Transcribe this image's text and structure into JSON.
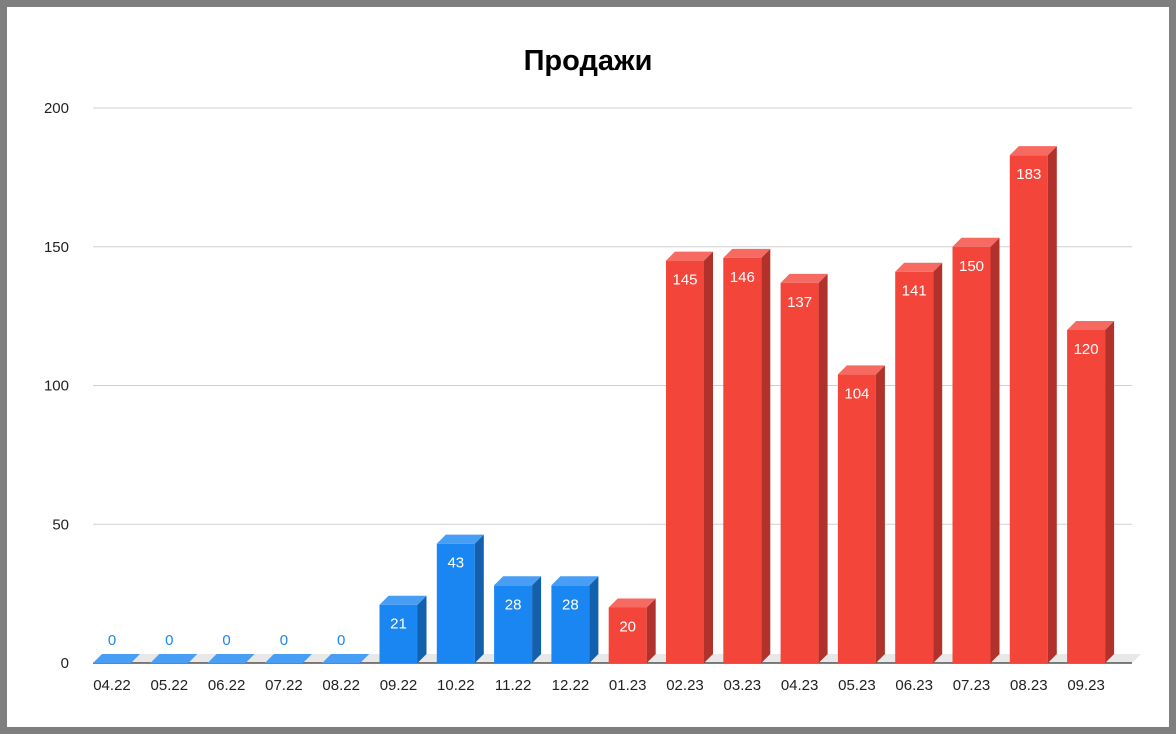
{
  "chart_data": {
    "type": "bar",
    "title": "Продажи",
    "xlabel": "",
    "ylabel": "",
    "categories": [
      "04.22",
      "05.22",
      "06.22",
      "07.22",
      "08.22",
      "09.22",
      "10.22",
      "11.22",
      "12.22",
      "01.23",
      "02.23",
      "03.23",
      "04.23",
      "05.23",
      "06.23",
      "07.23",
      "08.23",
      "09.23"
    ],
    "values": [
      0,
      0,
      0,
      0,
      0,
      21,
      43,
      28,
      28,
      20,
      145,
      146,
      137,
      104,
      141,
      150,
      183,
      120
    ],
    "bar_colors": [
      "#1a86f2",
      "#1a86f2",
      "#1a86f2",
      "#1a86f2",
      "#1a86f2",
      "#1a86f2",
      "#1a86f2",
      "#1a86f2",
      "#1a86f2",
      "#f4453a",
      "#f4453a",
      "#f4453a",
      "#f4453a",
      "#f4453a",
      "#f4453a",
      "#f4453a",
      "#f4453a",
      "#f4453a"
    ],
    "ylim": [
      0,
      200
    ],
    "yticks": [
      0,
      50,
      100,
      150,
      200
    ],
    "grid": true,
    "legend": "none",
    "style": "3d-column",
    "data_labels": true
  }
}
